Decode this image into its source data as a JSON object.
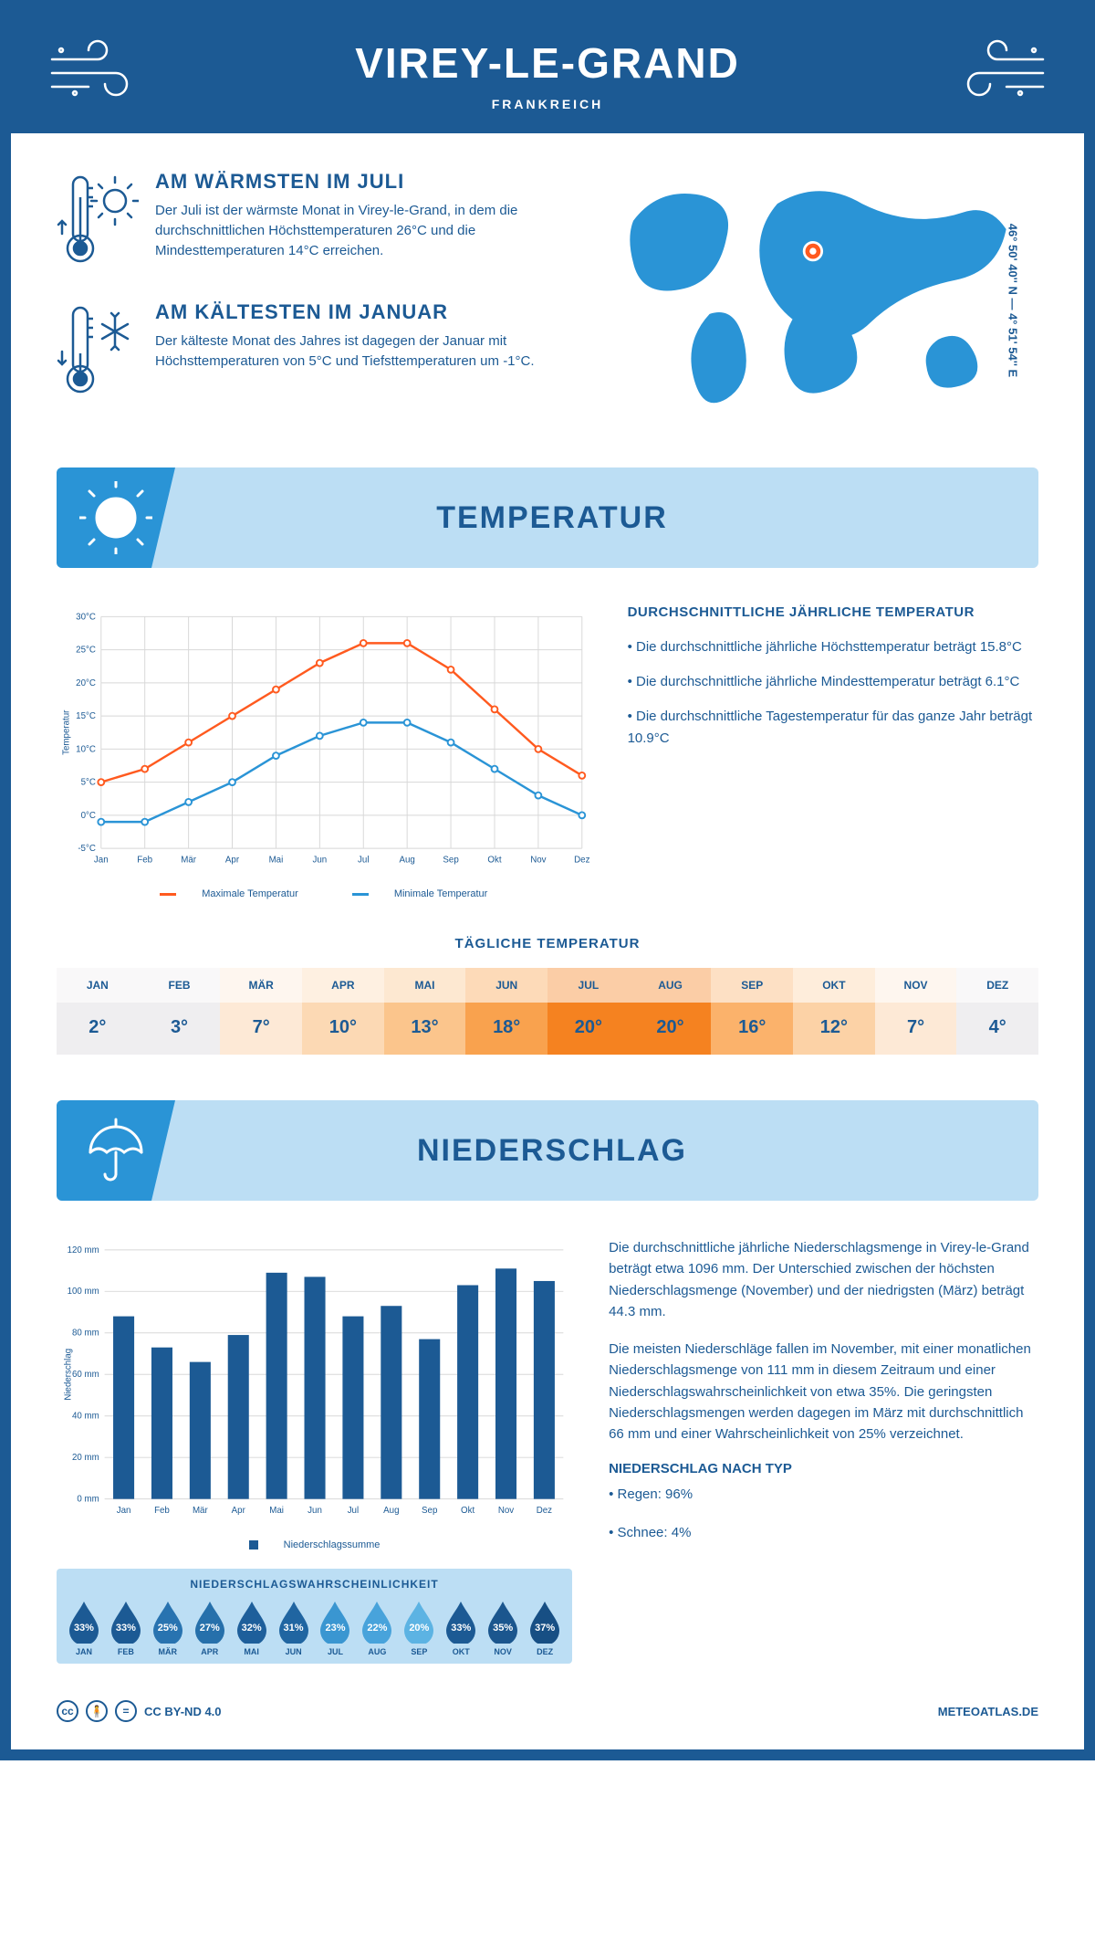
{
  "header": {
    "title": "VIREY-LE-GRAND",
    "subtitle": "FRANKREICH",
    "coords": "46° 50' 40'' N — 4° 51' 54'' E"
  },
  "facts": {
    "warmest": {
      "title": "AM WÄRMSTEN IM JULI",
      "text": "Der Juli ist der wärmste Monat in Virey-le-Grand, in dem die durchschnittlichen Höchsttemperaturen 26°C und die Mindesttemperaturen 14°C erreichen."
    },
    "coldest": {
      "title": "AM KÄLTESTEN IM JANUAR",
      "text": "Der kälteste Monat des Jahres ist dagegen der Januar mit Höchsttemperaturen von 5°C und Tiefsttemperaturen um -1°C."
    }
  },
  "sections": {
    "temperature": "TEMPERATUR",
    "precipitation": "NIEDERSCHLAG"
  },
  "temp_chart": {
    "type": "line",
    "months": [
      "Jan",
      "Feb",
      "Mär",
      "Apr",
      "Mai",
      "Jun",
      "Jul",
      "Aug",
      "Sep",
      "Okt",
      "Nov",
      "Dez"
    ],
    "max_series": [
      5,
      7,
      11,
      15,
      19,
      23,
      26,
      26,
      22,
      16,
      10,
      6
    ],
    "min_series": [
      -1,
      -1,
      2,
      5,
      9,
      12,
      14,
      14,
      11,
      7,
      3,
      0
    ],
    "max_color": "#ff5a1f",
    "min_color": "#2a94d6",
    "grid_color": "#d8d8d8",
    "ylim": [
      -5,
      30
    ],
    "ytick_step": 5,
    "ylabel": "Temperatur",
    "legend_max": "Maximale Temperatur",
    "legend_min": "Minimale Temperatur"
  },
  "temp_text": {
    "title": "DURCHSCHNITTLICHE JÄHRLICHE TEMPERATUR",
    "b1": "• Die durchschnittliche jährliche Höchsttemperatur beträgt 15.8°C",
    "b2": "• Die durchschnittliche jährliche Mindesttemperatur beträgt 6.1°C",
    "b3": "• Die durchschnittliche Tagestemperatur für das ganze Jahr beträgt 10.9°C"
  },
  "daily_temp": {
    "title": "TÄGLICHE TEMPERATUR",
    "months": [
      "JAN",
      "FEB",
      "MÄR",
      "APR",
      "MAI",
      "JUN",
      "JUL",
      "AUG",
      "SEP",
      "OKT",
      "NOV",
      "DEZ"
    ],
    "values": [
      "2°",
      "3°",
      "7°",
      "10°",
      "13°",
      "18°",
      "20°",
      "20°",
      "16°",
      "12°",
      "7°",
      "4°"
    ],
    "colors": [
      "#efeef0",
      "#efeef0",
      "#fde9d6",
      "#fcd9b4",
      "#fbc58c",
      "#f9a24e",
      "#f58220",
      "#f58220",
      "#fbb26b",
      "#fcd2a6",
      "#fde9d6",
      "#efeef0"
    ]
  },
  "precip_chart": {
    "type": "bar",
    "months": [
      "Jan",
      "Feb",
      "Mär",
      "Apr",
      "Mai",
      "Jun",
      "Jul",
      "Aug",
      "Sep",
      "Okt",
      "Nov",
      "Dez"
    ],
    "values": [
      88,
      73,
      66,
      79,
      109,
      107,
      88,
      93,
      77,
      103,
      111,
      105
    ],
    "bar_color": "#1c5a94",
    "grid_color": "#d8d8d8",
    "ylim": [
      0,
      120
    ],
    "ytick_step": 20,
    "ylabel": "Niederschlag",
    "legend": "Niederschlagssumme"
  },
  "precip_text": {
    "p1": "Die durchschnittliche jährliche Niederschlagsmenge in Virey-le-Grand beträgt etwa 1096 mm. Der Unterschied zwischen der höchsten Niederschlagsmenge (November) und der niedrigsten (März) beträgt 44.3 mm.",
    "p2": "Die meisten Niederschläge fallen im November, mit einer monatlichen Niederschlagsmenge von 111 mm in diesem Zeitraum und einer Niederschlagswahrscheinlichkeit von etwa 35%. Die geringsten Niederschlagsmengen werden dagegen im März mit durchschnittlich 66 mm und einer Wahrscheinlichkeit von 25% verzeichnet.",
    "type_title": "NIEDERSCHLAG NACH TYP",
    "type_b1": "• Regen: 96%",
    "type_b2": "• Schnee: 4%"
  },
  "prob": {
    "title": "NIEDERSCHLAGSWAHRSCHEINLICHKEIT",
    "months": [
      "JAN",
      "FEB",
      "MÄR",
      "APR",
      "MAI",
      "JUN",
      "JUL",
      "AUG",
      "SEP",
      "OKT",
      "NOV",
      "DEZ"
    ],
    "values": [
      "33%",
      "33%",
      "25%",
      "27%",
      "32%",
      "31%",
      "23%",
      "22%",
      "20%",
      "33%",
      "35%",
      "37%"
    ],
    "colors": [
      "#1c5a94",
      "#1c5a94",
      "#2873b0",
      "#2670ab",
      "#1e5f9b",
      "#2065a1",
      "#3a96d1",
      "#48a3db",
      "#5cb3e3",
      "#1c5a94",
      "#1b568e",
      "#174f84"
    ]
  },
  "footer": {
    "license": "CC BY-ND 4.0",
    "site": "METEOATLAS.DE"
  }
}
